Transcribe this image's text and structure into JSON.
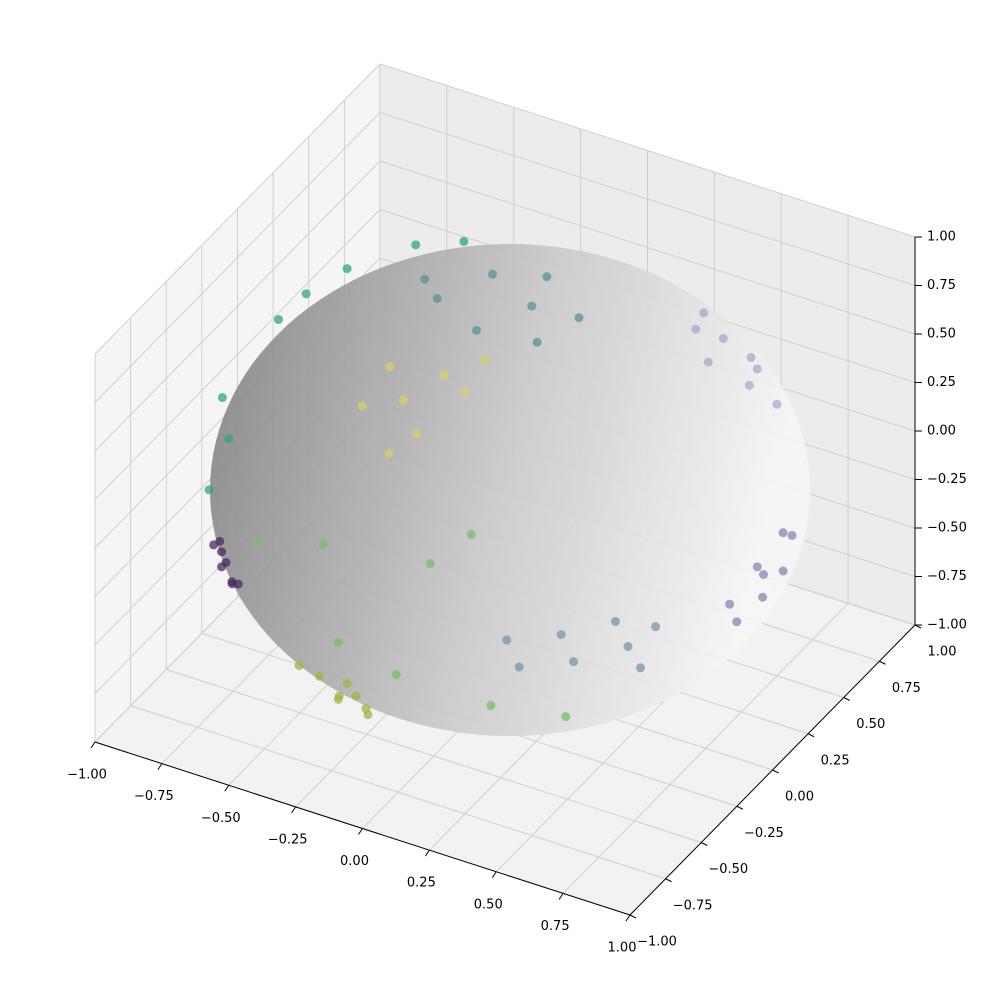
{
  "chart_data": {
    "type": "scatter3d",
    "xlim": [
      -1,
      1
    ],
    "ylim": [
      -1,
      1
    ],
    "zlim": [
      -1,
      1
    ],
    "xticks": [
      {
        "value": -1,
        "label": "−1.00"
      },
      {
        "value": -0.75,
        "label": "−0.75"
      },
      {
        "value": -0.5,
        "label": "−0.50"
      },
      {
        "value": -0.25,
        "label": "−0.25"
      },
      {
        "value": 0,
        "label": "0.00"
      },
      {
        "value": 0.25,
        "label": "0.25"
      },
      {
        "value": 0.5,
        "label": "0.50"
      },
      {
        "value": 0.75,
        "label": "0.75"
      },
      {
        "value": 1,
        "label": "1.00"
      }
    ],
    "yticks": [
      {
        "value": -1,
        "label": "−1.00"
      },
      {
        "value": -0.75,
        "label": "−0.75"
      },
      {
        "value": -0.5,
        "label": "−0.50"
      },
      {
        "value": -0.25,
        "label": "−0.25"
      },
      {
        "value": 0,
        "label": "0.00"
      },
      {
        "value": 0.25,
        "label": "0.25"
      },
      {
        "value": 0.5,
        "label": "0.50"
      },
      {
        "value": 0.75,
        "label": "0.75"
      },
      {
        "value": 1,
        "label": "1.00"
      }
    ],
    "zticks": [
      {
        "value": -1,
        "label": "−1.00"
      },
      {
        "value": -0.75,
        "label": "−0.75"
      },
      {
        "value": -0.5,
        "label": "−0.50"
      },
      {
        "value": -0.25,
        "label": "−0.25"
      },
      {
        "value": 0,
        "label": "0.00"
      },
      {
        "value": 0.25,
        "label": "0.25"
      },
      {
        "value": 0.5,
        "label": "0.50"
      },
      {
        "value": 0.75,
        "label": "0.75"
      },
      {
        "value": 1,
        "label": "1.00"
      }
    ],
    "grid": true,
    "series": [
      {
        "color": "#7a95a8",
        "x": [
          0.3,
          0.15,
          0.0,
          0.4,
          0.2,
          0.05,
          0.35,
          -0.1
        ],
        "y": [
          0.3,
          0.2,
          0.1,
          0.2,
          0.4,
          0.3,
          0.4,
          0.2
        ],
        "z": [
          -0.9,
          -0.97,
          -0.99,
          -0.89,
          -0.89,
          -0.95,
          -0.85,
          -0.97
        ]
      },
      {
        "color": "#d9cf6a",
        "x": [
          -0.8,
          -0.7,
          -0.6,
          -0.75,
          -0.55,
          -0.65,
          -0.5,
          -0.7
        ],
        "y": [
          0.5,
          0.6,
          0.7,
          0.6,
          0.75,
          0.6,
          0.8,
          0.5
        ],
        "z": [
          -0.3,
          -0.3,
          -0.2,
          -0.15,
          -0.3,
          -0.45,
          -0.15,
          -0.5
        ]
      },
      {
        "color": "#a9a8c8",
        "x": [
          0.5,
          0.6,
          0.55,
          0.7,
          0.65,
          0.45,
          0.75,
          0.6
        ],
        "y": [
          0.4,
          0.3,
          0.5,
          0.4,
          0.55,
          0.55,
          0.5,
          0.6
        ],
        "z": [
          0.75,
          0.7,
          0.65,
          0.55,
          0.5,
          0.7,
          0.4,
          0.5
        ]
      },
      {
        "color": "#2ea585",
        "x": [
          -0.95,
          -0.98,
          -0.9,
          -0.75,
          -0.6,
          -0.92,
          -0.85,
          -0.5
        ],
        "y": [
          -0.2,
          -0.1,
          0.1,
          0.3,
          0.5,
          -0.35,
          0.2,
          0.65
        ],
        "z": [
          0.2,
          -0.1,
          0.4,
          0.58,
          0.62,
          -0.15,
          0.48,
          0.57
        ]
      },
      {
        "color": "#5b9197",
        "x": [
          -0.2,
          0.0,
          0.1,
          -0.1,
          0.2,
          -0.3,
          0.05,
          0.25
        ],
        "y": [
          -0.1,
          -0.2,
          0.0,
          0.1,
          -0.15,
          0.0,
          0.2,
          0.05
        ],
        "z": [
          0.97,
          0.97,
          0.99,
          0.99,
          0.96,
          0.95,
          0.97,
          0.96
        ]
      },
      {
        "color": "#78bd6a",
        "x": [
          0.1,
          -0.2,
          0.4,
          -0.5,
          0.2,
          0.6,
          -0.1,
          0.3
        ],
        "y": [
          -0.95,
          -0.9,
          -0.85,
          -0.8,
          -0.9,
          -0.7,
          -0.98,
          -0.8
        ],
        "z": [
          -0.2,
          0.3,
          -0.3,
          0.1,
          0.38,
          -0.38,
          -0.1,
          0.5
        ]
      },
      {
        "color": "#9db548",
        "x": [
          -0.3,
          -0.2,
          -0.4,
          -0.25,
          -0.35,
          -0.15,
          -0.45,
          -0.28
        ],
        "y": [
          -0.6,
          -0.6,
          -0.55,
          -0.7,
          -0.45,
          -0.68,
          -0.6,
          -0.52
        ],
        "z": [
          -0.75,
          -0.77,
          -0.73,
          -0.67,
          -0.82,
          -0.72,
          -0.66,
          -0.8
        ]
      },
      {
        "color": "#8e83b0",
        "x": [
          0.7,
          0.75,
          0.65,
          0.8,
          0.6,
          0.72,
          0.68,
          0.78
        ],
        "y": [
          0.5,
          0.4,
          0.55,
          0.45,
          0.45,
          0.6,
          0.35,
          0.55
        ],
        "z": [
          -0.5,
          -0.52,
          -0.52,
          -0.4,
          -0.66,
          -0.35,
          -0.64,
          -0.3
        ]
      },
      {
        "color": "#4b2c62",
        "x": [
          -0.75,
          -0.7,
          -0.8,
          -0.72,
          -0.78,
          -0.68,
          -0.82,
          -0.74
        ],
        "y": [
          -0.55,
          -0.6,
          -0.5,
          -0.52,
          -0.58,
          -0.64,
          -0.45,
          -0.6
        ],
        "z": [
          -0.3,
          -0.35,
          -0.25,
          -0.42,
          -0.2,
          -0.3,
          -0.35,
          -0.28
        ]
      }
    ]
  }
}
